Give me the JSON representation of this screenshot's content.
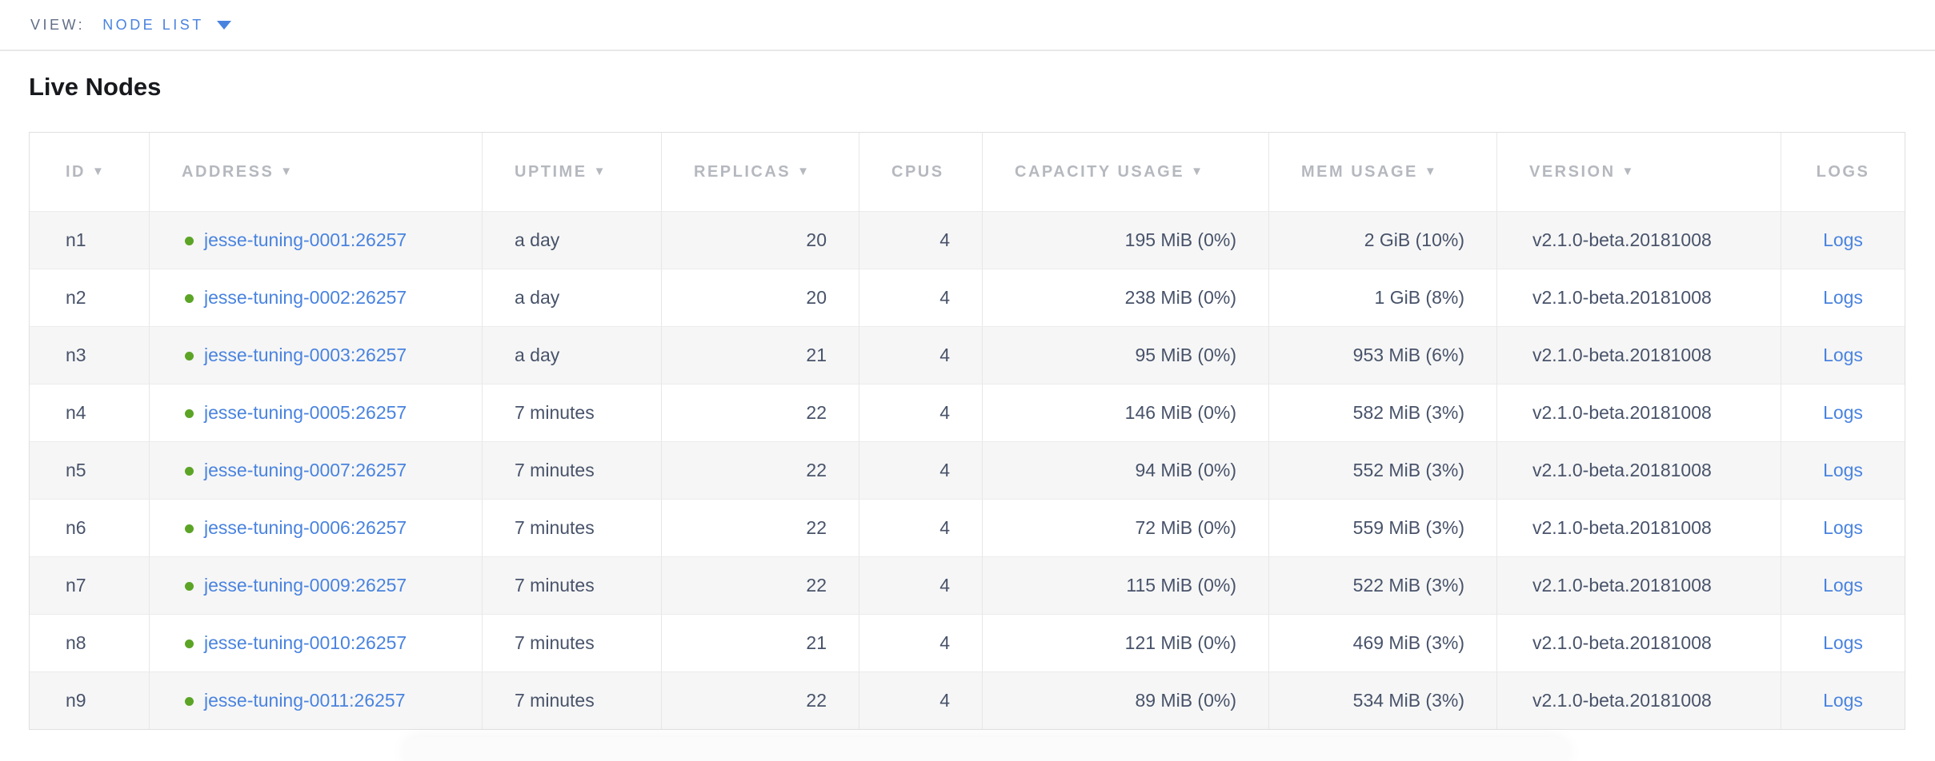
{
  "view_bar": {
    "label": "VIEW:",
    "selected_view": "NODE LIST"
  },
  "page": {
    "title": "Live Nodes"
  },
  "colors": {
    "accent_blue": "#4983df",
    "status_green": "#5ba425",
    "header_gray": "#b5b8be",
    "cell_text": "#48536a"
  },
  "table": {
    "logs_label": "Logs",
    "columns": [
      {
        "key": "id",
        "label": "ID",
        "sortable": true,
        "align": "left"
      },
      {
        "key": "address",
        "label": "ADDRESS",
        "sortable": true,
        "align": "left"
      },
      {
        "key": "uptime",
        "label": "UPTIME",
        "sortable": true,
        "align": "left"
      },
      {
        "key": "replicas",
        "label": "REPLICAS",
        "sortable": true,
        "align": "right"
      },
      {
        "key": "cpus",
        "label": "CPUS",
        "sortable": false,
        "align": "right"
      },
      {
        "key": "capacity",
        "label": "CAPACITY USAGE",
        "sortable": true,
        "align": "right"
      },
      {
        "key": "mem",
        "label": "MEM USAGE",
        "sortable": true,
        "align": "right"
      },
      {
        "key": "version",
        "label": "VERSION",
        "sortable": true,
        "align": "left"
      },
      {
        "key": "logs",
        "label": "LOGS",
        "sortable": false,
        "align": "center"
      }
    ],
    "rows": [
      {
        "id": "n1",
        "address": "jesse-tuning-0001:26257",
        "status": "healthy",
        "uptime": "a day",
        "replicas": "20",
        "cpus": "4",
        "capacity": "195 MiB (0%)",
        "mem": "2 GiB (10%)",
        "version": "v2.1.0-beta.20181008"
      },
      {
        "id": "n2",
        "address": "jesse-tuning-0002:26257",
        "status": "healthy",
        "uptime": "a day",
        "replicas": "20",
        "cpus": "4",
        "capacity": "238 MiB (0%)",
        "mem": "1 GiB (8%)",
        "version": "v2.1.0-beta.20181008"
      },
      {
        "id": "n3",
        "address": "jesse-tuning-0003:26257",
        "status": "healthy",
        "uptime": "a day",
        "replicas": "21",
        "cpus": "4",
        "capacity": "95 MiB (0%)",
        "mem": "953 MiB (6%)",
        "version": "v2.1.0-beta.20181008"
      },
      {
        "id": "n4",
        "address": "jesse-tuning-0005:26257",
        "status": "healthy",
        "uptime": "7 minutes",
        "replicas": "22",
        "cpus": "4",
        "capacity": "146 MiB (0%)",
        "mem": "582 MiB (3%)",
        "version": "v2.1.0-beta.20181008"
      },
      {
        "id": "n5",
        "address": "jesse-tuning-0007:26257",
        "status": "healthy",
        "uptime": "7 minutes",
        "replicas": "22",
        "cpus": "4",
        "capacity": "94 MiB (0%)",
        "mem": "552 MiB (3%)",
        "version": "v2.1.0-beta.20181008"
      },
      {
        "id": "n6",
        "address": "jesse-tuning-0006:26257",
        "status": "healthy",
        "uptime": "7 minutes",
        "replicas": "22",
        "cpus": "4",
        "capacity": "72 MiB (0%)",
        "mem": "559 MiB (3%)",
        "version": "v2.1.0-beta.20181008"
      },
      {
        "id": "n7",
        "address": "jesse-tuning-0009:26257",
        "status": "healthy",
        "uptime": "7 minutes",
        "replicas": "22",
        "cpus": "4",
        "capacity": "115 MiB (0%)",
        "mem": "522 MiB (3%)",
        "version": "v2.1.0-beta.20181008"
      },
      {
        "id": "n8",
        "address": "jesse-tuning-0010:26257",
        "status": "healthy",
        "uptime": "7 minutes",
        "replicas": "21",
        "cpus": "4",
        "capacity": "121 MiB (0%)",
        "mem": "469 MiB (3%)",
        "version": "v2.1.0-beta.20181008"
      },
      {
        "id": "n9",
        "address": "jesse-tuning-0011:26257",
        "status": "healthy",
        "uptime": "7 minutes",
        "replicas": "22",
        "cpus": "4",
        "capacity": "89 MiB (0%)",
        "mem": "534 MiB (3%)",
        "version": "v2.1.0-beta.20181008"
      }
    ]
  }
}
